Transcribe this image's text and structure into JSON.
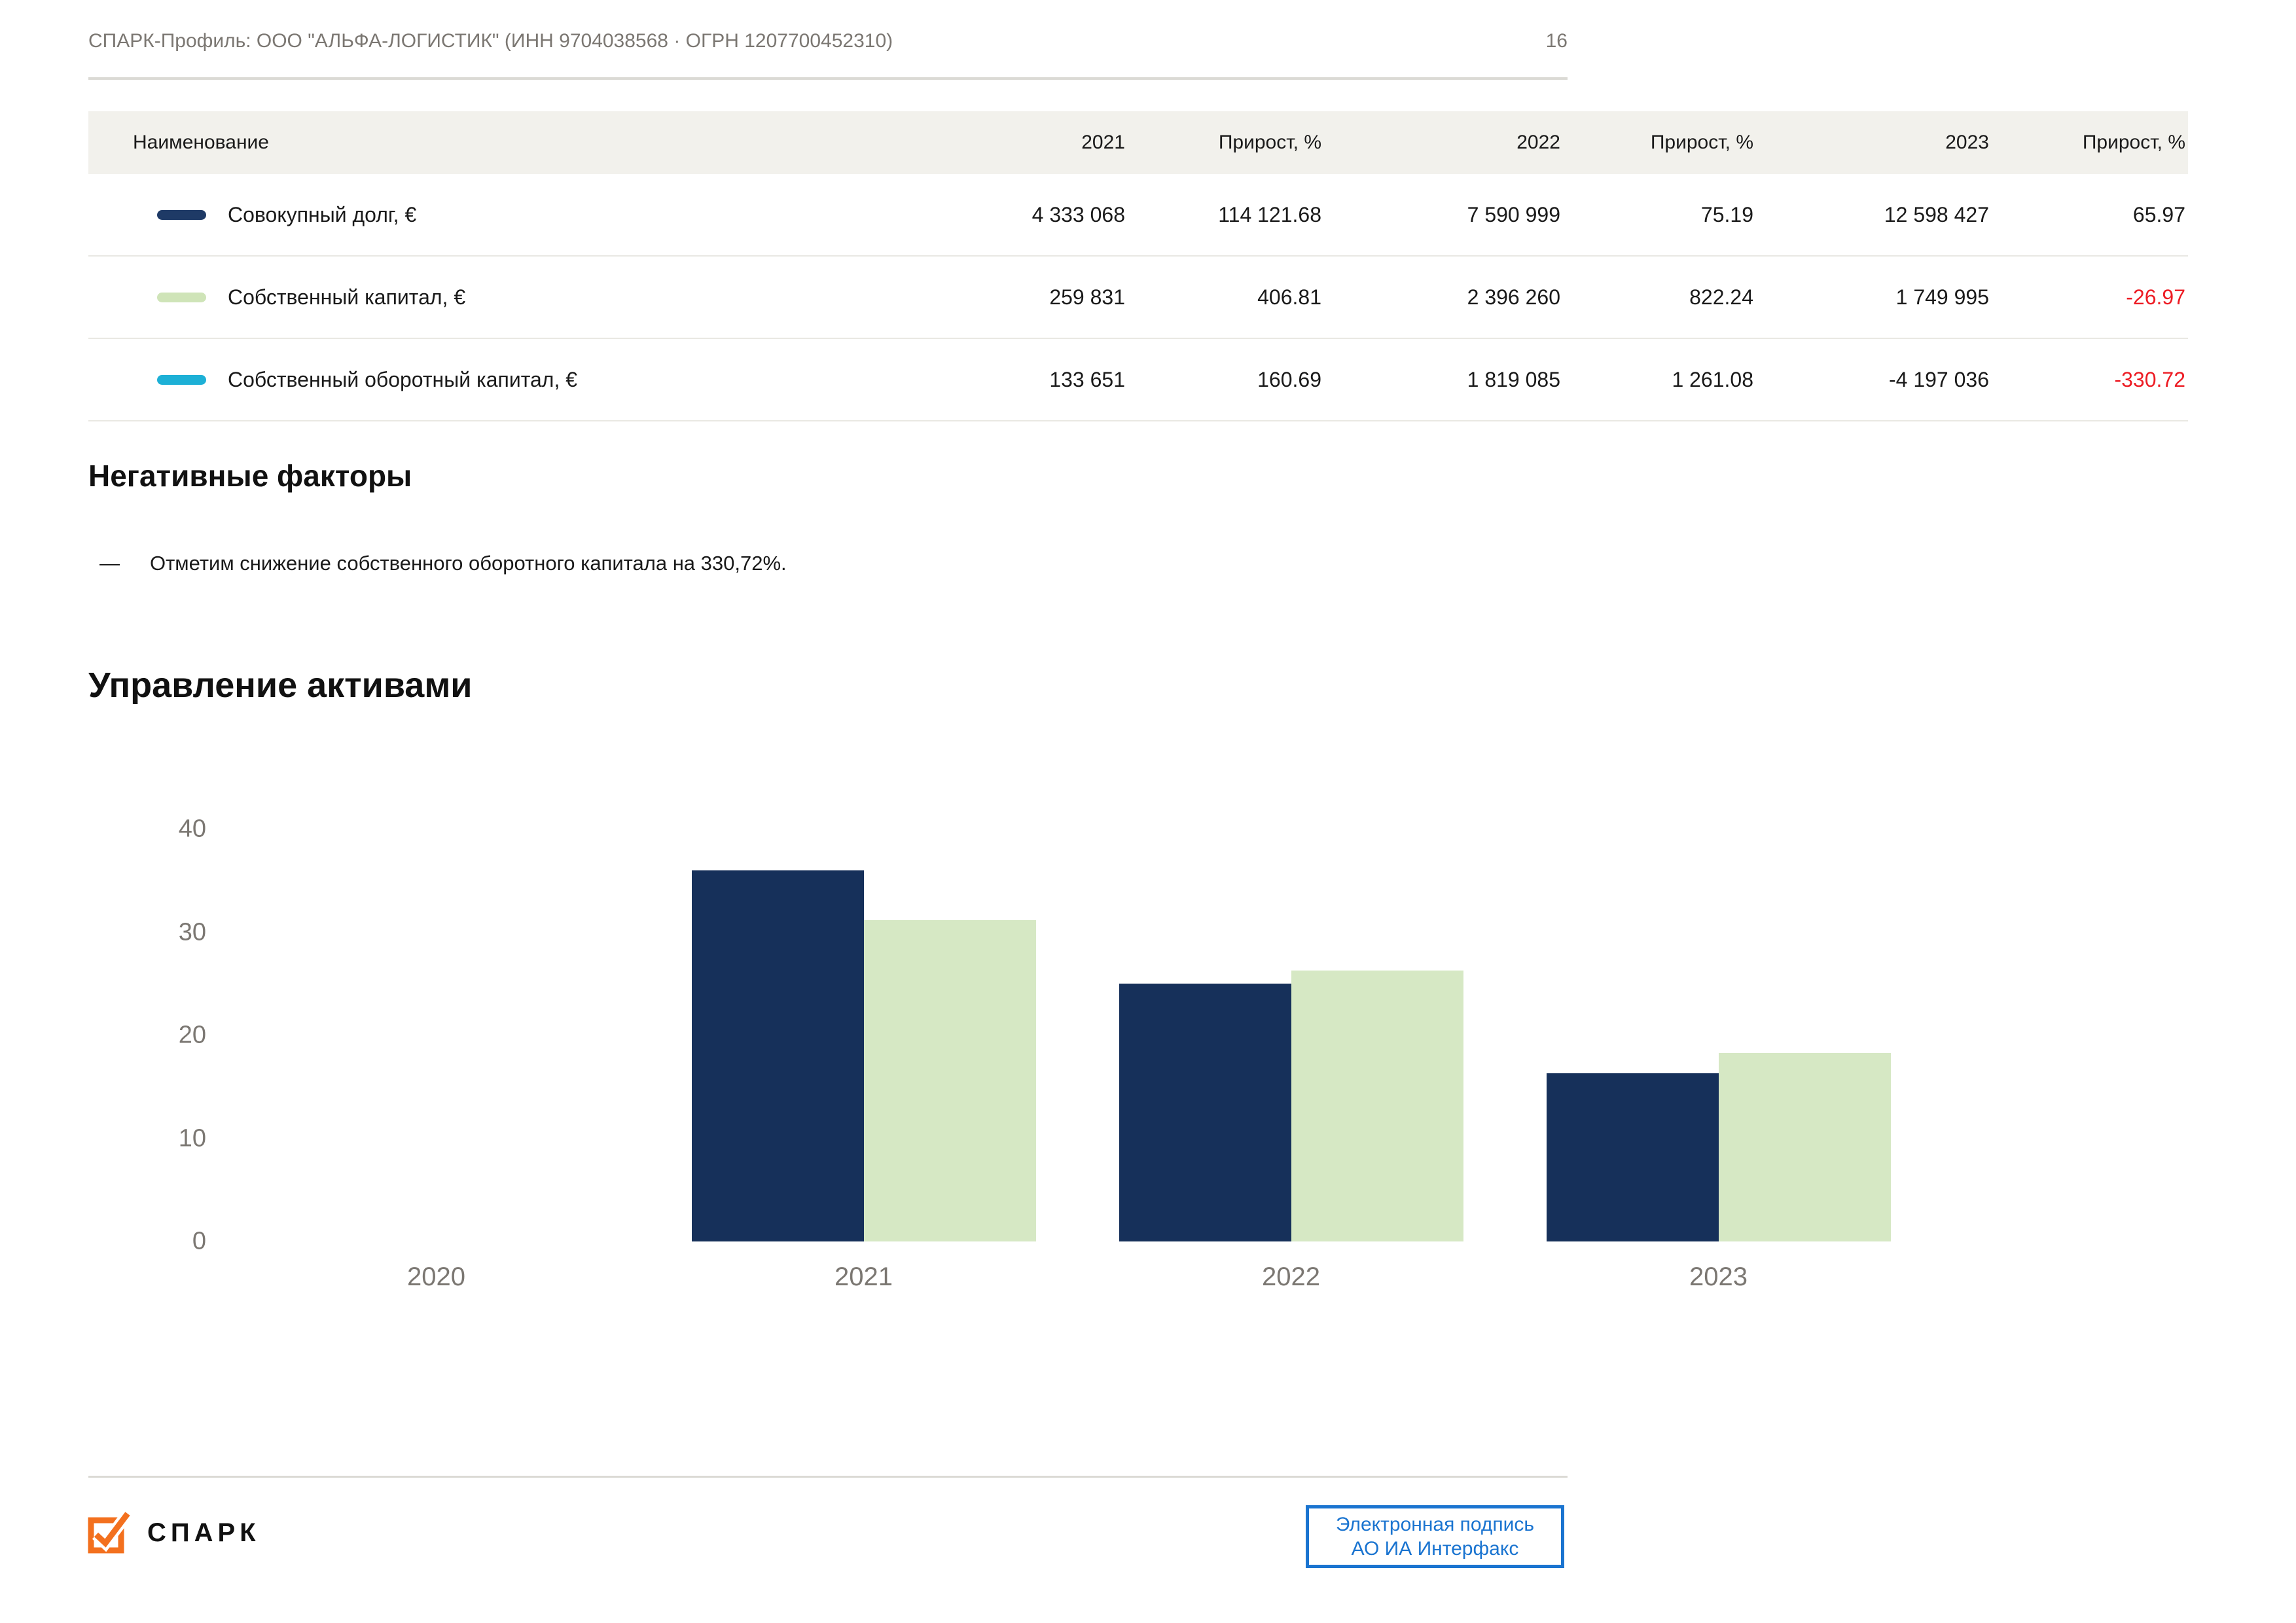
{
  "header": {
    "title": "СПАРК-Профиль: ООО \"АЛЬФА-ЛОГИСТИК\" (ИНН 9704038568 · ОГРН 1207700452310)",
    "page_number": "16"
  },
  "table": {
    "columns": [
      "Наименование",
      "2021",
      "Прирост, %",
      "2022",
      "Прирост, %",
      "2023",
      "Прирост, %"
    ],
    "rows": [
      {
        "name": "Совокупный долг, €",
        "swatch_color": "#1e3a66",
        "values": [
          "4 333 068",
          "114 121.68",
          "7 590 999",
          "75.19",
          "12 598 427",
          "65.97"
        ],
        "red": [
          false,
          false,
          false,
          false,
          false,
          false
        ]
      },
      {
        "name": "Собственный капитал, €",
        "swatch_color": "#cfe4b8",
        "values": [
          "259 831",
          "406.81",
          "2 396 260",
          "822.24",
          "1 749 995",
          "-26.97"
        ],
        "red": [
          false,
          false,
          false,
          false,
          false,
          true
        ]
      },
      {
        "name": "Собственный оборотный капитал, €",
        "swatch_color": "#1db0d6",
        "values": [
          "133 651",
          "160.69",
          "1 819 085",
          "1 261.08",
          "-4 197 036",
          "-330.72"
        ],
        "red": [
          false,
          false,
          false,
          false,
          false,
          true
        ]
      }
    ]
  },
  "negative_factors": {
    "heading": "Негативные факторы",
    "bullet": "—",
    "items": [
      "Отметим снижение собственного оборотного капитала на 330,72%."
    ]
  },
  "chart_section": {
    "heading": "Управление активами"
  },
  "chart_data": {
    "type": "bar",
    "title": "Управление активами",
    "categories": [
      "2020",
      "2021",
      "2022",
      "2023"
    ],
    "series": [
      {
        "name": "Совокупный долг",
        "color": "#16305a",
        "values": [
          null,
          36.0,
          25.0,
          16.3
        ]
      },
      {
        "name": "Собственный капитал",
        "color": "#d6e8c4",
        "values": [
          null,
          31.2,
          26.3,
          18.3
        ]
      }
    ],
    "xlabel": "",
    "ylabel": "",
    "ylim": [
      0,
      40
    ],
    "yticks": [
      0,
      10,
      20,
      30,
      40
    ],
    "grid": false,
    "legend_position": "none"
  },
  "footer": {
    "logo_text": "СПАРК",
    "signature_line1": "Электронная подпись",
    "signature_line2": "АО ИА Интерфакс"
  },
  "colors": {
    "navy": "#16305a",
    "light_green": "#d6e8c4",
    "cyan": "#1db0d6",
    "negative_red": "#ed1c24",
    "signature_blue": "#1a74d0",
    "logo_orange": "#f3701e",
    "table_header_bg": "#f2f1ec",
    "muted_text": "#7b7772"
  }
}
